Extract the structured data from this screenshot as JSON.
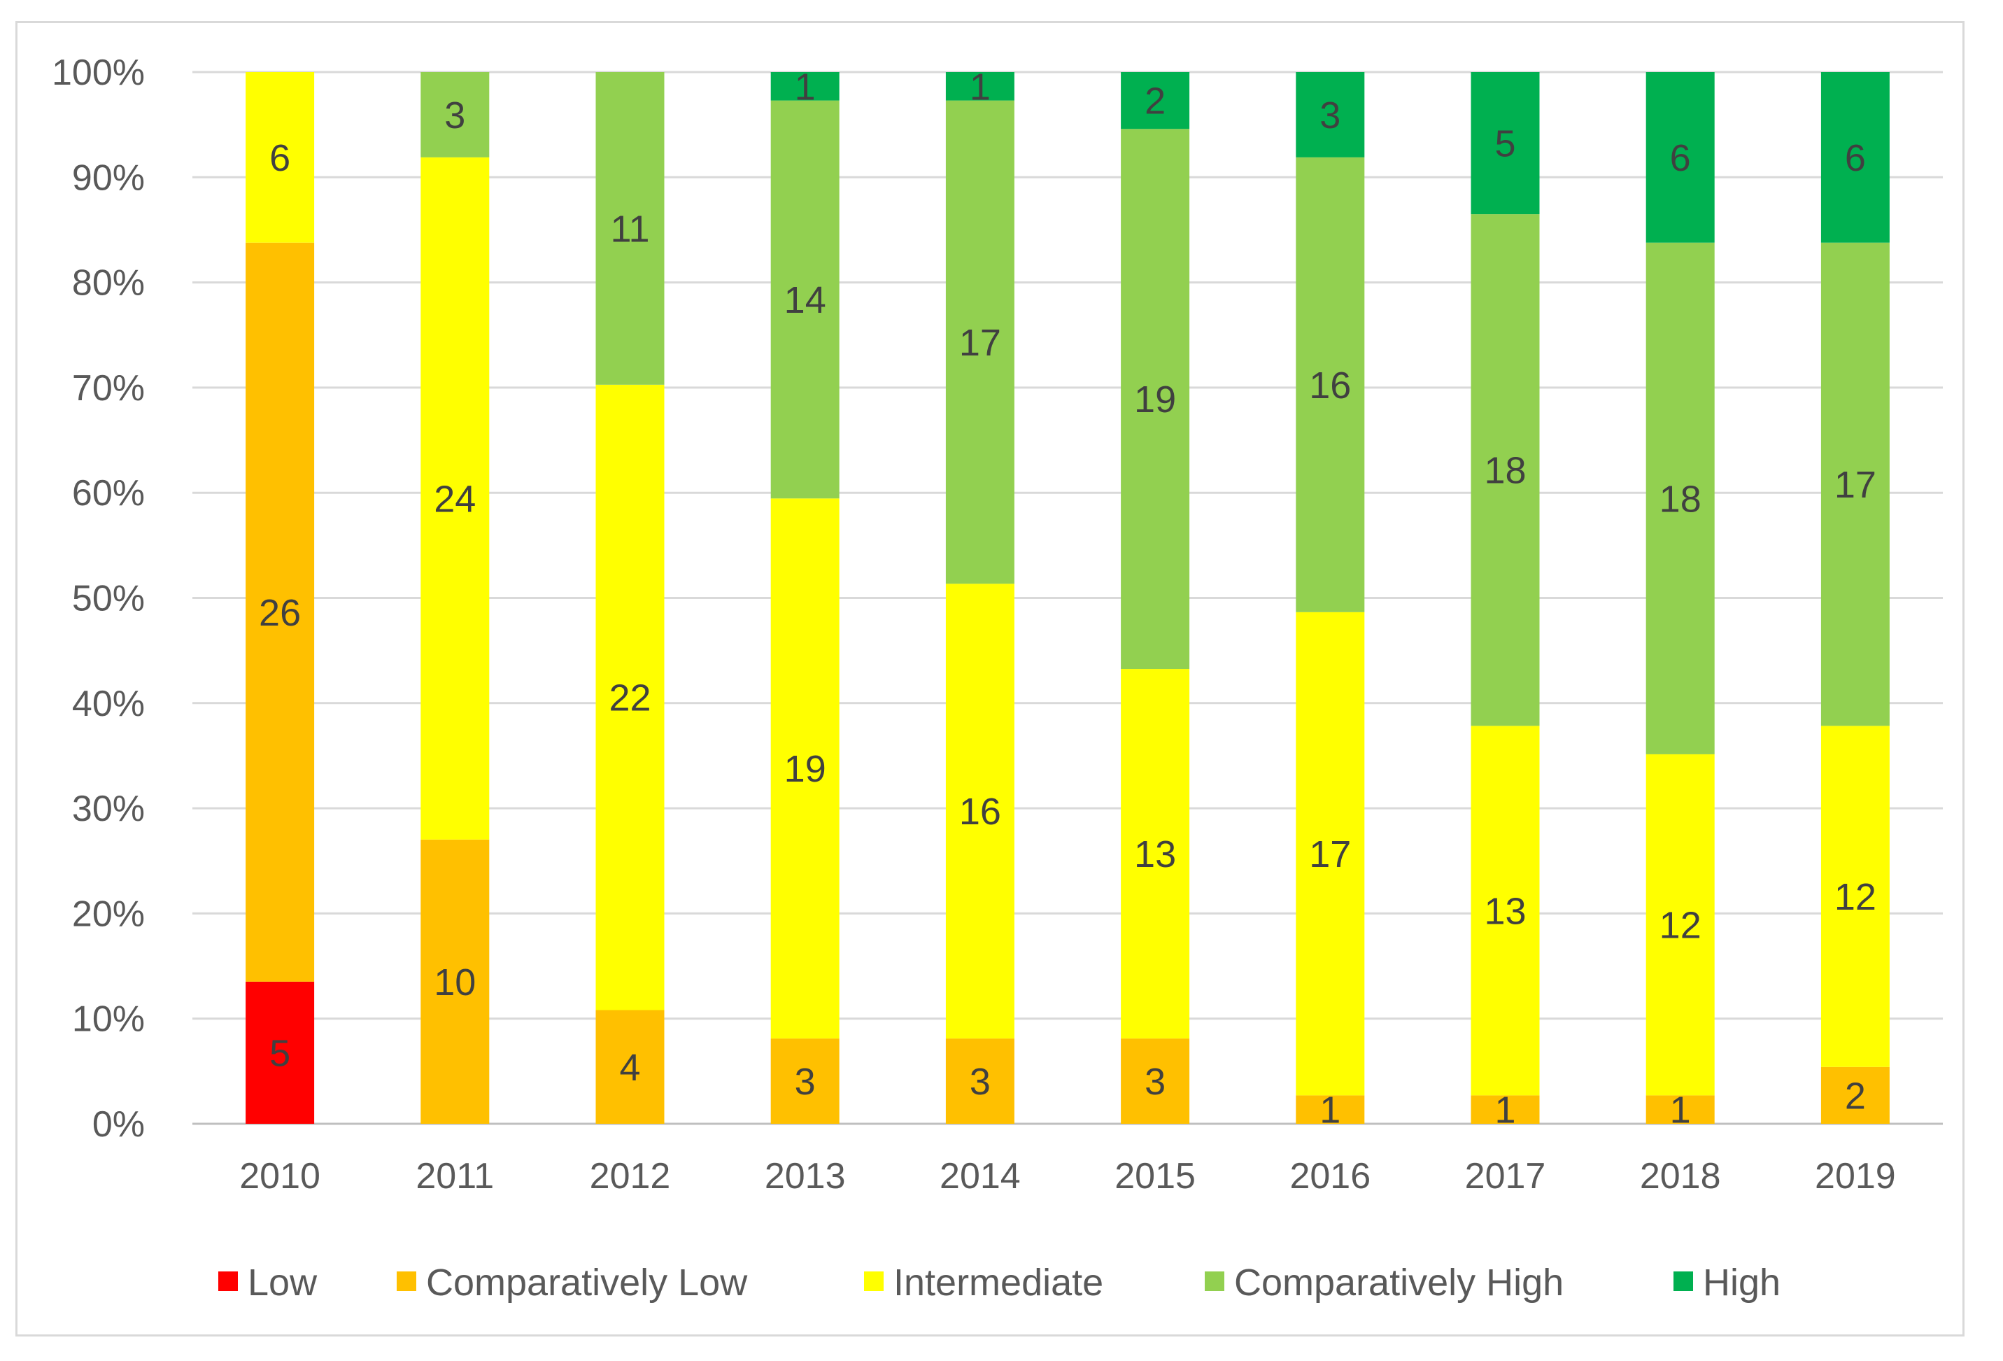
{
  "chart_data": {
    "type": "bar",
    "stacked": "percent",
    "title": "",
    "xlabel": "",
    "ylabel": "",
    "ylim": [
      0,
      100
    ],
    "yticks": [
      "0%",
      "10%",
      "20%",
      "30%",
      "40%",
      "50%",
      "60%",
      "70%",
      "80%",
      "90%",
      "100%"
    ],
    "categories": [
      "2010",
      "2011",
      "2012",
      "2013",
      "2014",
      "2015",
      "2016",
      "2017",
      "2018",
      "2019"
    ],
    "series": [
      {
        "name": "Low",
        "color": "#ff0000",
        "values": [
          5,
          0,
          0,
          0,
          0,
          0,
          0,
          0,
          0,
          0
        ]
      },
      {
        "name": "Comparatively Low",
        "color": "#ffc000",
        "values": [
          26,
          10,
          4,
          3,
          3,
          3,
          1,
          1,
          1,
          2
        ]
      },
      {
        "name": "Intermediate",
        "color": "#ffff00",
        "values": [
          6,
          24,
          22,
          19,
          16,
          13,
          17,
          13,
          12,
          12
        ]
      },
      {
        "name": "Comparatively High",
        "color": "#92d050",
        "values": [
          0,
          3,
          11,
          14,
          17,
          19,
          16,
          18,
          18,
          17
        ]
      },
      {
        "name": "High",
        "color": "#00b050",
        "values": [
          0,
          0,
          0,
          1,
          1,
          2,
          3,
          5,
          6,
          6
        ]
      }
    ],
    "legend_position": "bottom",
    "grid": true
  }
}
